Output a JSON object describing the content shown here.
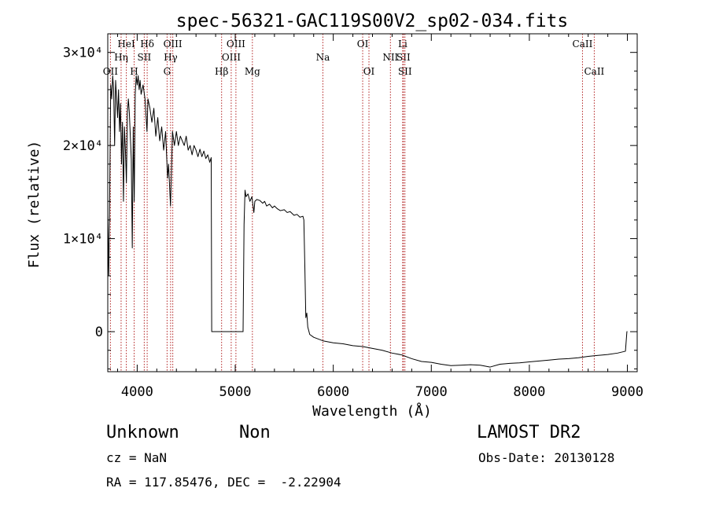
{
  "chart_data": {
    "type": "line",
    "title": "spec-56321-GAC119S00V2_sp02-034.fits",
    "xlabel": "Wavelength (Å)",
    "ylabel": "Flux (relative)",
    "xlim": [
      3700,
      9100
    ],
    "ylim": [
      -4300,
      32000
    ],
    "x_ticks": [
      4000,
      5000,
      6000,
      7000,
      8000,
      9000
    ],
    "x_tick_labels": [
      "4000",
      "5000",
      "6000",
      "7000",
      "8000",
      "9000"
    ],
    "y_ticks": [
      0,
      10000,
      20000,
      30000
    ],
    "y_tick_labels": [
      "0",
      "1×10⁴",
      "2×10⁴",
      "3×10⁴"
    ],
    "grid": false,
    "series": [
      {
        "color": "#000000",
        "points": [
          [
            3700,
            12500
          ],
          [
            3710,
            6000
          ],
          [
            3720,
            15000
          ],
          [
            3730,
            26500
          ],
          [
            3740,
            25000
          ],
          [
            3750,
            27500
          ],
          [
            3760,
            26000
          ],
          [
            3770,
            20000
          ],
          [
            3780,
            27000
          ],
          [
            3790,
            25000
          ],
          [
            3800,
            23000
          ],
          [
            3810,
            26000
          ],
          [
            3820,
            21500
          ],
          [
            3830,
            24500
          ],
          [
            3840,
            18000
          ],
          [
            3850,
            22500
          ],
          [
            3860,
            14000
          ],
          [
            3870,
            22000
          ],
          [
            3880,
            19500
          ],
          [
            3890,
            16000
          ],
          [
            3900,
            23500
          ],
          [
            3910,
            25000
          ],
          [
            3920,
            23500
          ],
          [
            3930,
            21000
          ],
          [
            3940,
            18500
          ],
          [
            3950,
            9000
          ],
          [
            3960,
            22000
          ],
          [
            3970,
            14000
          ],
          [
            3980,
            25500
          ],
          [
            3990,
            27500
          ],
          [
            4000,
            26500
          ],
          [
            4010,
            27500
          ],
          [
            4020,
            26000
          ],
          [
            4030,
            27000
          ],
          [
            4040,
            25500
          ],
          [
            4060,
            26500
          ],
          [
            4080,
            25000
          ],
          [
            4100,
            21500
          ],
          [
            4110,
            25000
          ],
          [
            4130,
            24000
          ],
          [
            4150,
            22500
          ],
          [
            4170,
            24000
          ],
          [
            4190,
            21000
          ],
          [
            4210,
            23000
          ],
          [
            4230,
            20500
          ],
          [
            4250,
            22000
          ],
          [
            4270,
            19500
          ],
          [
            4290,
            21500
          ],
          [
            4310,
            16500
          ],
          [
            4320,
            18000
          ],
          [
            4340,
            13500
          ],
          [
            4360,
            21500
          ],
          [
            4380,
            20000
          ],
          [
            4400,
            21500
          ],
          [
            4420,
            20000
          ],
          [
            4440,
            21000
          ],
          [
            4460,
            20500
          ],
          [
            4480,
            20000
          ],
          [
            4500,
            21000
          ],
          [
            4520,
            19500
          ],
          [
            4540,
            20000
          ],
          [
            4560,
            19000
          ],
          [
            4580,
            20000
          ],
          [
            4600,
            19500
          ],
          [
            4620,
            18800
          ],
          [
            4640,
            19600
          ],
          [
            4660,
            18800
          ],
          [
            4680,
            19400
          ],
          [
            4700,
            18600
          ],
          [
            4720,
            19000
          ],
          [
            4740,
            18200
          ],
          [
            4755,
            18700
          ],
          [
            4760,
            0
          ],
          [
            4800,
            0
          ],
          [
            5080,
            0
          ],
          [
            5090,
            11500
          ],
          [
            5100,
            15200
          ],
          [
            5110,
            14500
          ],
          [
            5130,
            14800
          ],
          [
            5150,
            14000
          ],
          [
            5170,
            14500
          ],
          [
            5190,
            12800
          ],
          [
            5200,
            14000
          ],
          [
            5220,
            14200
          ],
          [
            5250,
            14100
          ],
          [
            5280,
            13800
          ],
          [
            5300,
            14000
          ],
          [
            5320,
            13500
          ],
          [
            5350,
            13700
          ],
          [
            5380,
            13300
          ],
          [
            5400,
            13500
          ],
          [
            5430,
            13200
          ],
          [
            5460,
            13000
          ],
          [
            5500,
            13100
          ],
          [
            5530,
            12800
          ],
          [
            5560,
            12900
          ],
          [
            5600,
            12500
          ],
          [
            5630,
            12600
          ],
          [
            5660,
            12300
          ],
          [
            5690,
            12400
          ],
          [
            5700,
            12000
          ],
          [
            5710,
            7000
          ],
          [
            5720,
            1500
          ],
          [
            5730,
            2000
          ],
          [
            5740,
            500
          ],
          [
            5760,
            -300
          ],
          [
            5800,
            -600
          ],
          [
            5900,
            -1000
          ],
          [
            6000,
            -1200
          ],
          [
            6100,
            -1300
          ],
          [
            6200,
            -1500
          ],
          [
            6300,
            -1600
          ],
          [
            6400,
            -1800
          ],
          [
            6500,
            -2000
          ],
          [
            6600,
            -2300
          ],
          [
            6700,
            -2500
          ],
          [
            6800,
            -2900
          ],
          [
            6900,
            -3200
          ],
          [
            7000,
            -3300
          ],
          [
            7100,
            -3500
          ],
          [
            7200,
            -3650
          ],
          [
            7300,
            -3600
          ],
          [
            7400,
            -3550
          ],
          [
            7500,
            -3600
          ],
          [
            7600,
            -3800
          ],
          [
            7700,
            -3500
          ],
          [
            7800,
            -3400
          ],
          [
            7900,
            -3350
          ],
          [
            8000,
            -3250
          ],
          [
            8100,
            -3150
          ],
          [
            8200,
            -3050
          ],
          [
            8300,
            -2950
          ],
          [
            8400,
            -2900
          ],
          [
            8500,
            -2800
          ],
          [
            8600,
            -2650
          ],
          [
            8700,
            -2550
          ],
          [
            8800,
            -2450
          ],
          [
            8900,
            -2300
          ],
          [
            8980,
            -2100
          ],
          [
            8995,
            0
          ],
          [
            9000,
            0
          ]
        ]
      }
    ],
    "line_markers": [
      {
        "label": "OII",
        "x": 3727,
        "row": 2
      },
      {
        "label": "Hη",
        "x": 3836,
        "row": 1
      },
      {
        "label": "HeI",
        "x": 3889,
        "row": 0
      },
      {
        "label": "H",
        "x": 3969,
        "row": 2
      },
      {
        "label": "SII",
        "x": 4072,
        "row": 1
      },
      {
        "label": "Hδ",
        "x": 4102,
        "row": 0
      },
      {
        "label": "G",
        "x": 4305,
        "row": 2
      },
      {
        "label": "Hγ",
        "x": 4341,
        "row": 1
      },
      {
        "label": "OIII",
        "x": 4363,
        "row": 0
      },
      {
        "label": "Hβ",
        "x": 4861,
        "row": 2
      },
      {
        "label": "OIII",
        "x": 4959,
        "row": 1
      },
      {
        "label": "OIII",
        "x": 5007,
        "row": 0
      },
      {
        "label": "Mg",
        "x": 5175,
        "row": 2
      },
      {
        "label": "Na",
        "x": 5894,
        "row": 1
      },
      {
        "label": "OI",
        "x": 6300,
        "row": 0
      },
      {
        "label": "OI",
        "x": 6364,
        "row": 2
      },
      {
        "label": "NII",
        "x": 6583,
        "row": 1
      },
      {
        "label": "Li",
        "x": 6708,
        "row": 0
      },
      {
        "label": "SII",
        "x": 6716,
        "row": 1
      },
      {
        "label": "SII",
        "x": 6731,
        "row": 2
      },
      {
        "label": "CaII",
        "x": 8542,
        "row": 0
      },
      {
        "label": "CaII",
        "x": 8662,
        "row": 2
      }
    ]
  },
  "info": {
    "class_label": "Unknown",
    "subclass_label": "Non",
    "cz_text": "cz = NaN",
    "coords_text": "RA = 117.85476, DEC =  -2.22904",
    "survey_text": "LAMOST DR2",
    "obs_date_text": "Obs-Date: 20130128"
  }
}
